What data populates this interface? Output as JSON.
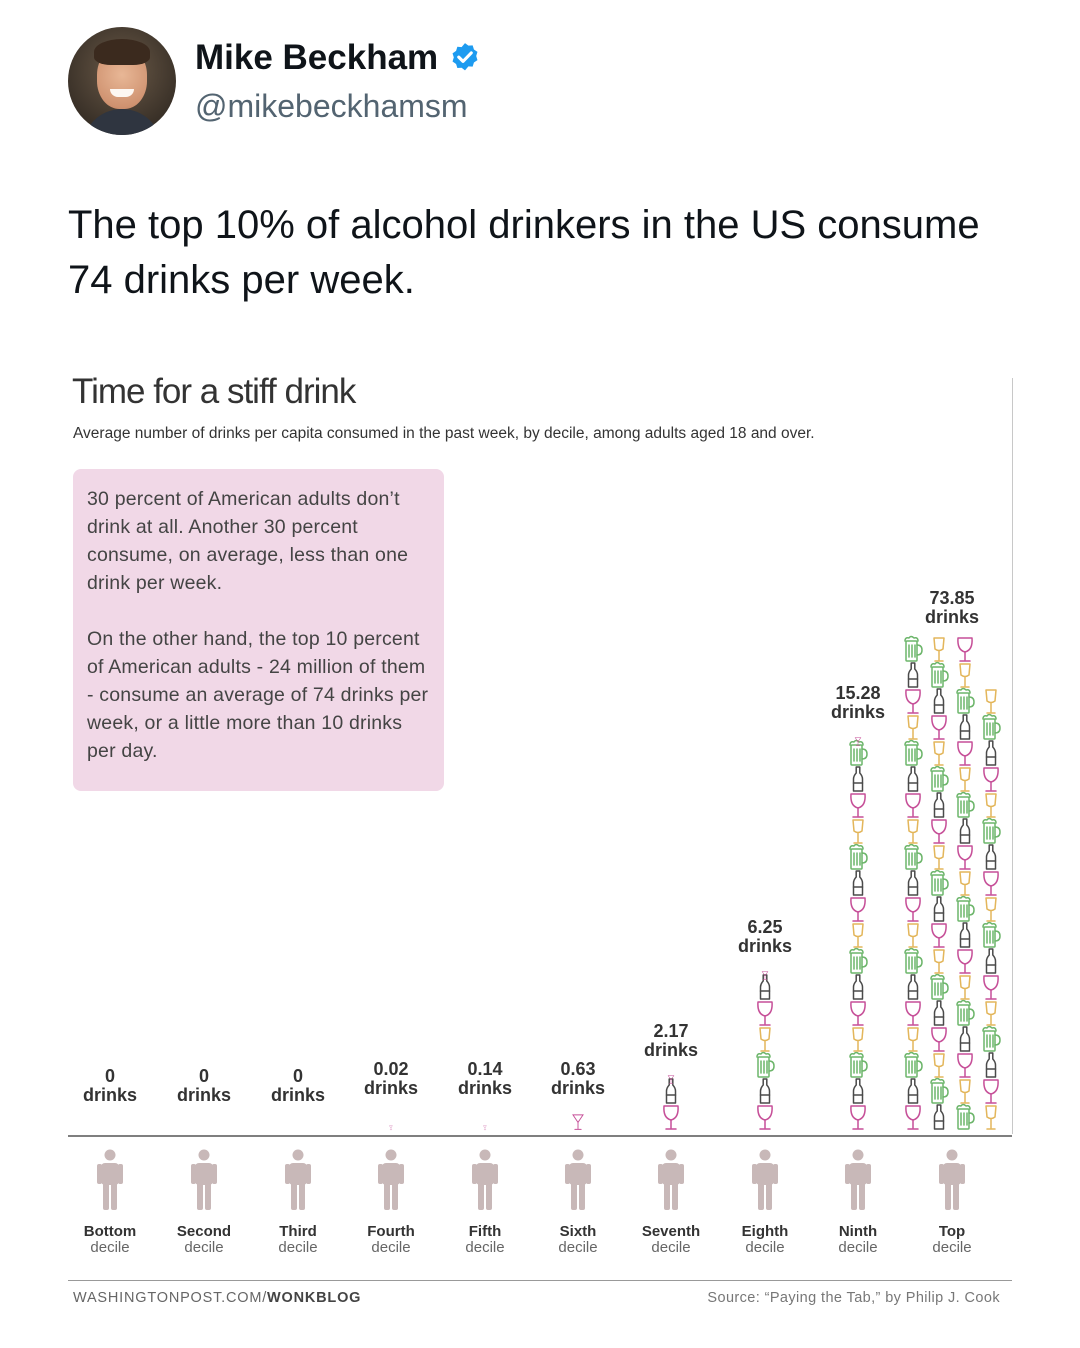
{
  "tweet": {
    "display_name": "Mike Beckham",
    "handle": "@mikebeckhamsm",
    "verified_icon": "verified-badge-icon",
    "text": "The top 10% of alcohol drinkers in the US consume 74 drinks per week."
  },
  "note": {
    "paragraph1": "30 percent of American adults don’t drink at all. Another 30 percent consume, on average, less than one drink per week.",
    "paragraph2": "On the other hand, the top 10 percent of American adults - 24 million of them - consume an average of 74 drinks per week, or a little more than 10 drinks per day."
  },
  "footer": {
    "site": "WASHINGTONPOST.COM/",
    "section": "WONKBLOG",
    "source": "Source: “Paying the Tab,” by Philip J. Cook"
  },
  "colors": {
    "wine": "#c64f98",
    "bottle": "#4a4a4a",
    "beer": "#6cb56a",
    "glass": "#e3b65b",
    "person": "#c8b8b8",
    "note_bg": "#f1d8e7"
  },
  "chart_data": {
    "type": "bar",
    "title": "Time for a stiff drink",
    "subtitle": "Average number of drinks per capita consumed in the past week, by decile, among adults aged 18 and over.",
    "unit": "drinks",
    "categories": [
      {
        "name": "Bottom",
        "sub": "decile"
      },
      {
        "name": "Second",
        "sub": "decile"
      },
      {
        "name": "Third",
        "sub": "decile"
      },
      {
        "name": "Fourth",
        "sub": "decile"
      },
      {
        "name": "Fifth",
        "sub": "decile"
      },
      {
        "name": "Sixth",
        "sub": "decile"
      },
      {
        "name": "Seventh",
        "sub": "decile"
      },
      {
        "name": "Eighth",
        "sub": "decile"
      },
      {
        "name": "Ninth",
        "sub": "decile"
      },
      {
        "name": "Top",
        "sub": "decile"
      }
    ],
    "values": [
      0,
      0,
      0,
      0.02,
      0.14,
      0.63,
      2.17,
      6.25,
      15.28,
      73.85
    ],
    "value_labels": [
      "0",
      "0",
      "0",
      "0.02",
      "0.14",
      "0.63",
      "2.17",
      "6.25",
      "15.28",
      "73.85"
    ],
    "icon_types": [
      "wine-glass-icon",
      "bottle-icon",
      "beer-mug-icon",
      "cocktail-glass-icon"
    ]
  }
}
